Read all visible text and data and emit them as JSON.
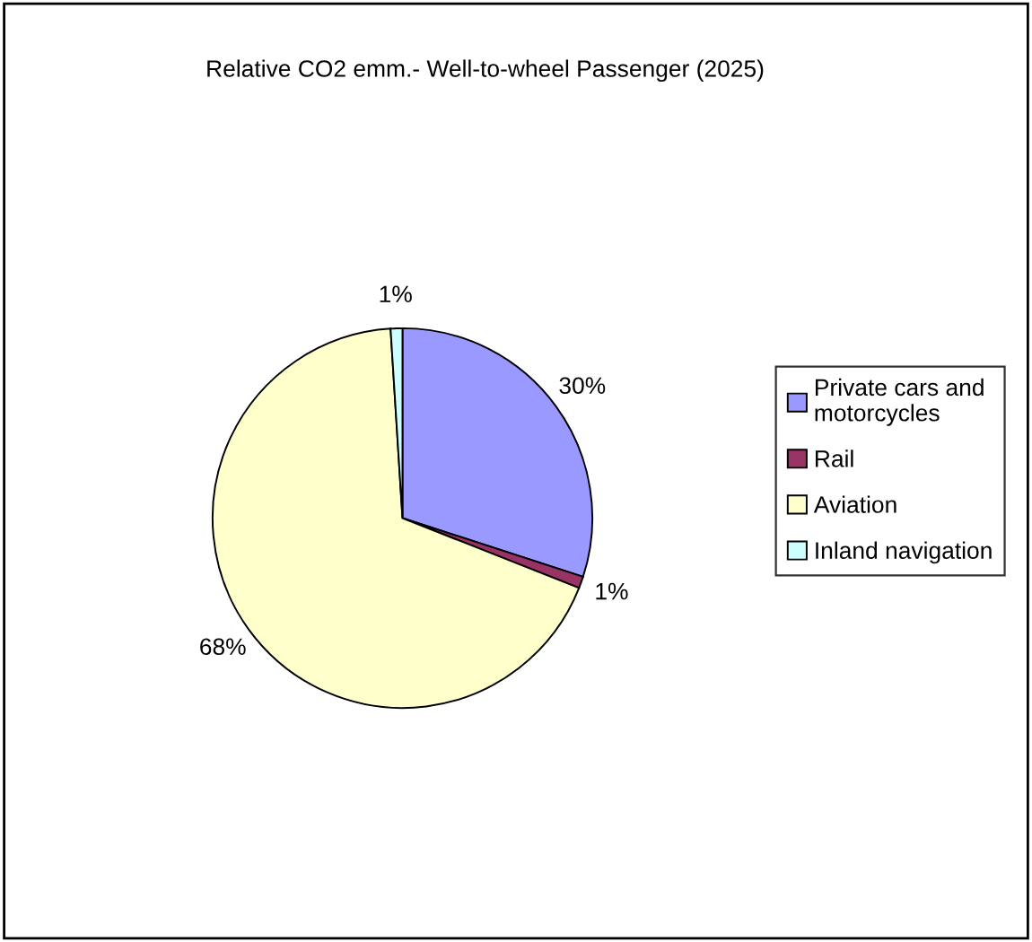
{
  "chart_data": {
    "type": "pie",
    "title": "Relative CO2 emm.- Well-to-wheel Passenger (2025)",
    "categories": [
      "Private cars and\nmotorcycles",
      "Rail",
      "Aviation",
      "Inland navigation"
    ],
    "values": [
      30,
      1,
      68,
      1
    ],
    "colors": [
      "#9999ff",
      "#993366",
      "#ffffcc",
      "#ccffff"
    ],
    "value_labels": [
      "30%",
      "1%",
      "68%",
      "1%"
    ],
    "legend": "right"
  }
}
